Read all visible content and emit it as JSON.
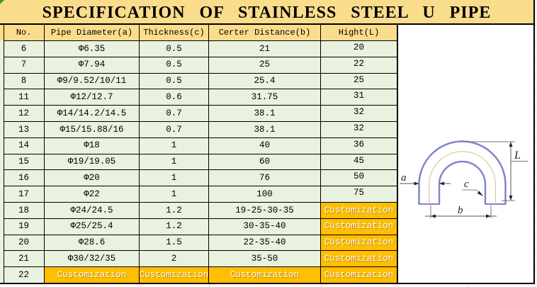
{
  "title": "SPECIFICATION OF STAINLESS STEEL U PIPE",
  "table": {
    "headers": [
      "No.",
      "Pipe Diameter(a)",
      "Thickness(c)",
      "Certer Distance(b)",
      "Hight(L)"
    ],
    "rows": [
      {
        "cells": [
          "6",
          "Φ6.35",
          "0.5",
          "21",
          "20"
        ],
        "custom": [
          false,
          false,
          false,
          false,
          false
        ]
      },
      {
        "cells": [
          "7",
          "Φ7.94",
          "0.5",
          "25",
          "22"
        ],
        "custom": [
          false,
          false,
          false,
          false,
          false
        ]
      },
      {
        "cells": [
          "8",
          "Φ9/9.52/10/11",
          "0.5",
          "25.4",
          "25"
        ],
        "custom": [
          false,
          false,
          false,
          false,
          false
        ]
      },
      {
        "cells": [
          "11",
          "Φ12/12.7",
          "0.6",
          "31.75",
          "31"
        ],
        "custom": [
          false,
          false,
          false,
          false,
          false
        ]
      },
      {
        "cells": [
          "12",
          "Φ14/14.2/14.5",
          "0.7",
          "38.1",
          "32"
        ],
        "custom": [
          false,
          false,
          false,
          false,
          false
        ]
      },
      {
        "cells": [
          "13",
          "Φ15/15.88/16",
          "0.7",
          "38.1",
          "32"
        ],
        "custom": [
          false,
          false,
          false,
          false,
          false
        ]
      },
      {
        "cells": [
          "14",
          "Φ18",
          "1",
          "40",
          "36"
        ],
        "custom": [
          false,
          false,
          false,
          false,
          false
        ]
      },
      {
        "cells": [
          "15",
          "Φ19/19.05",
          "1",
          "60",
          "45"
        ],
        "custom": [
          false,
          false,
          false,
          false,
          false
        ]
      },
      {
        "cells": [
          "16",
          "Φ20",
          "1",
          "76",
          "50"
        ],
        "custom": [
          false,
          false,
          false,
          false,
          false
        ]
      },
      {
        "cells": [
          "17",
          "Φ22",
          "1",
          "100",
          "75"
        ],
        "custom": [
          false,
          false,
          false,
          false,
          false
        ]
      },
      {
        "cells": [
          "18",
          "Φ24/24.5",
          "1.2",
          "19-25-30-35",
          "Customization"
        ],
        "custom": [
          false,
          false,
          false,
          false,
          true
        ]
      },
      {
        "cells": [
          "19",
          "Φ25/25.4",
          "1.2",
          "30-35-40",
          "Customization"
        ],
        "custom": [
          false,
          false,
          false,
          false,
          true
        ]
      },
      {
        "cells": [
          "20",
          "Φ28.6",
          "1.5",
          "22-35-40",
          "Customization"
        ],
        "custom": [
          false,
          false,
          false,
          false,
          true
        ]
      },
      {
        "cells": [
          "21",
          "Φ30/32/35",
          "2",
          "35-50",
          "Customization"
        ],
        "custom": [
          false,
          false,
          false,
          false,
          true
        ]
      },
      {
        "cells": [
          "22",
          "Customization",
          "Customization",
          "Customization",
          "Customization"
        ],
        "custom": [
          false,
          true,
          true,
          true,
          true
        ]
      }
    ]
  },
  "diagram": {
    "labels": {
      "a": "a",
      "b": "b",
      "c": "c",
      "L": "L"
    }
  },
  "colors": {
    "title_bg": "#fadd8c",
    "header_bg": "#fadd8c",
    "row_bg": "#e9f1df",
    "custom_bg": "#ffbf00",
    "custom_text": "#ffffff",
    "border": "#000000",
    "pipe_stroke": "#8285c7",
    "pipe_centerline": "#dfc7a0",
    "dimension_line": "#555555",
    "gridline": "#d7d7d7",
    "corner_marker": "#2f9e44"
  }
}
